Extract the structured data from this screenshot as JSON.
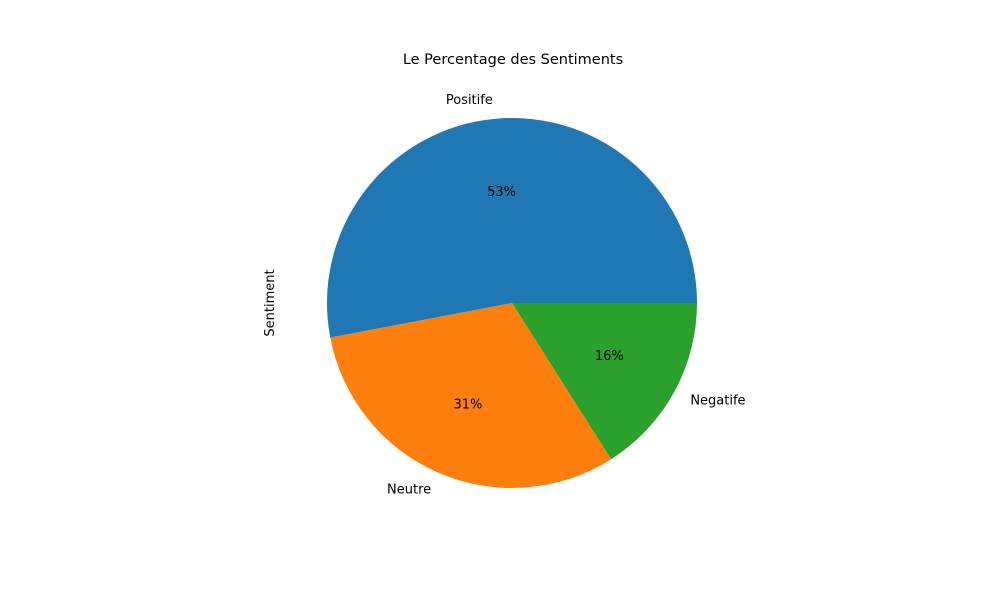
{
  "chart_data": {
    "type": "pie",
    "title": "Le Percentage des Sentiments",
    "ylabel": "Sentiment",
    "categories": [
      "Positife",
      "Neutre",
      "Negatife"
    ],
    "values": [
      53,
      31,
      16
    ],
    "value_labels": [
      "53%",
      "31%",
      "16%"
    ],
    "colors": [
      "#1f77b4",
      "#ff7f0e",
      "#2ca02c"
    ],
    "start_angle": 0,
    "direction": "counterclockwise"
  }
}
